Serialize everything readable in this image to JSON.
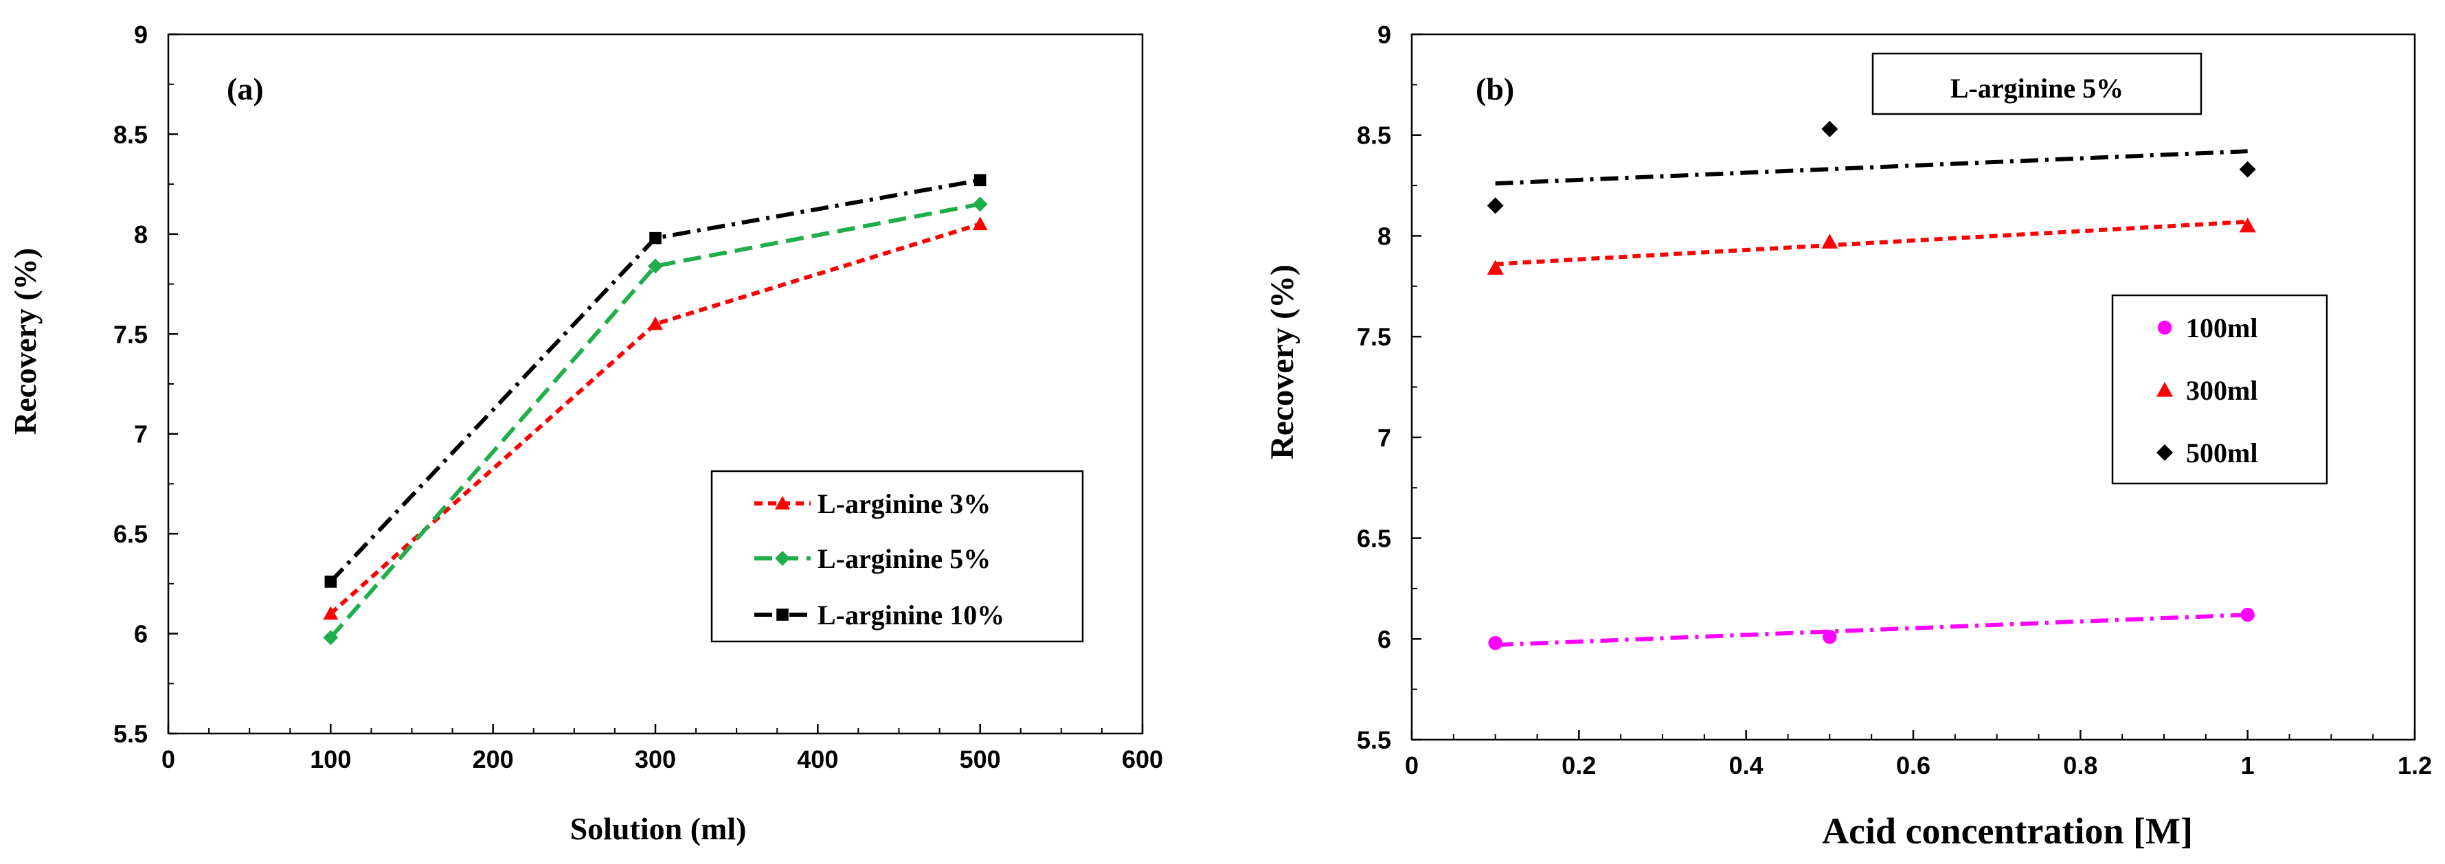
{
  "colors": {
    "red": "#ff0000",
    "green": "#1fae4b",
    "black": "#000000",
    "magenta": "#ff00ff"
  },
  "chart_data": [
    {
      "type": "line",
      "panel_label": "(a)",
      "title": "",
      "xlabel": "Solution (ml)",
      "ylabel": "Recovery (%)",
      "xlim": [
        0,
        600
      ],
      "ylim": [
        5.5,
        9
      ],
      "xticks": [
        "0",
        "100",
        "200",
        "300",
        "400",
        "500",
        "600"
      ],
      "yticks": [
        "5.5",
        "6",
        "6.5",
        "7",
        "7.5",
        "8",
        "8.5",
        "9"
      ],
      "x": [
        100,
        300,
        500
      ],
      "legend_position": "center-right",
      "series": [
        {
          "name": "L-arginine 3%",
          "values": [
            6.1,
            7.55,
            8.05
          ],
          "color": "#ff0000",
          "marker": "triangle",
          "line": "dashed"
        },
        {
          "name": "L-arginine 5%",
          "values": [
            5.98,
            7.84,
            8.15
          ],
          "color": "#1fae4b",
          "marker": "diamond",
          "line": "long-dashed"
        },
        {
          "name": "L-arginine 10%",
          "values": [
            6.26,
            7.98,
            8.27
          ],
          "color": "#000000",
          "marker": "square",
          "line": "dash-dot"
        }
      ]
    },
    {
      "type": "scatter",
      "panel_label": "(b)",
      "title": "",
      "annotation": "L-arginine 5%",
      "xlabel": "Acid concentration [M]",
      "ylabel": "Recovery (%)",
      "xlim": [
        0,
        1.2
      ],
      "ylim": [
        5.5,
        9
      ],
      "xticks": [
        "0",
        "0.2",
        "0.4",
        "0.6",
        "0.8",
        "1",
        "1.2"
      ],
      "yticks": [
        "5.5",
        "6",
        "6.5",
        "7",
        "7.5",
        "8",
        "8.5",
        "9"
      ],
      "x": [
        0.1,
        0.5,
        1.0
      ],
      "legend_position": "right",
      "series": [
        {
          "name": "100ml",
          "values": [
            5.98,
            6.01,
            6.12
          ],
          "color": "#ff00ff",
          "marker": "circle",
          "trend": [
            5.97,
            6.12
          ]
        },
        {
          "name": "300ml",
          "values": [
            7.84,
            7.97,
            8.05
          ],
          "color": "#ff0000",
          "marker": "triangle",
          "trend": [
            7.86,
            8.07
          ]
        },
        {
          "name": "500ml",
          "values": [
            8.15,
            8.53,
            8.33
          ],
          "color": "#000000",
          "marker": "diamond",
          "trend": [
            8.26,
            8.42
          ]
        }
      ]
    }
  ]
}
